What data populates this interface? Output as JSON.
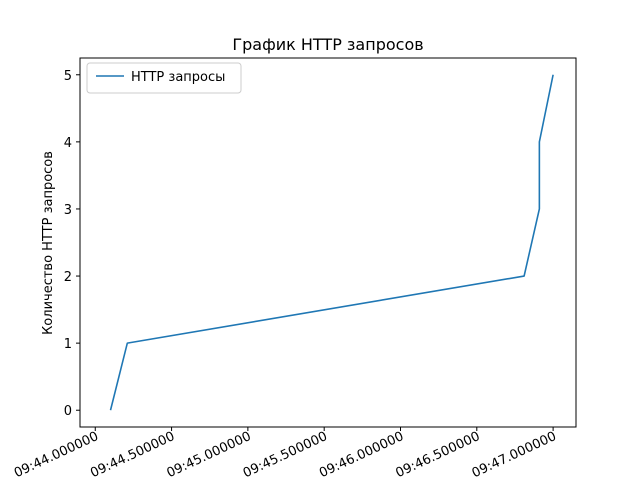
{
  "chart_data": {
    "type": "line",
    "title": "График HTTP запросов",
    "xlabel": "",
    "ylabel": "Количество HTTP запросов",
    "x_tick_labels": [
      "09:44.000000",
      "09:44.500000",
      "09:45.000000",
      "09:45.500000",
      "09:46.000000",
      "09:46.500000",
      "09:47.000000"
    ],
    "x_ticks": [
      0,
      0.5,
      1.0,
      1.5,
      2.0,
      2.5,
      3.0
    ],
    "xlim": [
      -0.1,
      3.15
    ],
    "ylim": [
      -0.25,
      5.25
    ],
    "y_ticks": [
      0,
      1,
      2,
      3,
      4,
      5
    ],
    "legend_position": "upper-left",
    "grid": false,
    "series": [
      {
        "name": "HTTP запросы",
        "color": "#1f77b4",
        "points": [
          {
            "x": 0.1,
            "y": 0
          },
          {
            "x": 0.21,
            "y": 1
          },
          {
            "x": 2.81,
            "y": 2
          },
          {
            "x": 2.91,
            "y": 3
          },
          {
            "x": 2.91,
            "y": 4
          },
          {
            "x": 3.0,
            "y": 5
          }
        ]
      }
    ]
  }
}
